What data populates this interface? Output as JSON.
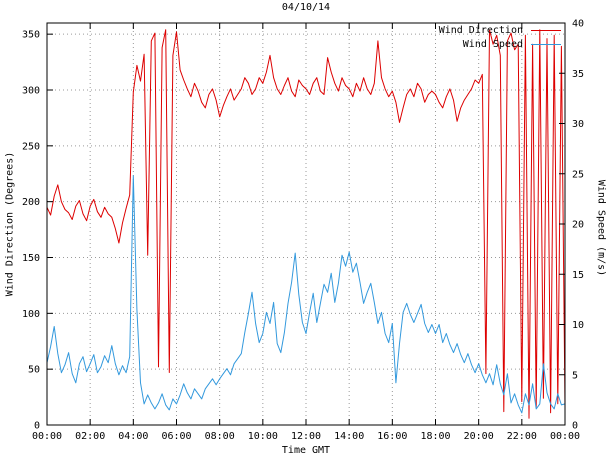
{
  "legend": [
    {
      "label": "Wind Direction",
      "color": "#dd0000"
    },
    {
      "label": "Wind Speed",
      "color": "#3399dd"
    }
  ],
  "chart_data": {
    "type": "line",
    "title": "04/10/14",
    "xlabel": "Time GMT",
    "ylabel_left": "Wind Direction (Degrees)",
    "ylabel_right": "Wind Speed (m/s)",
    "grid": true,
    "legend_position": "top-right-inside",
    "xlim": [
      0,
      24
    ],
    "ylim_left": [
      0,
      360
    ],
    "ylim_right": [
      0,
      40
    ],
    "x_tick_labels": [
      "00:00",
      "02:00",
      "04:00",
      "06:00",
      "08:00",
      "10:00",
      "12:00",
      "14:00",
      "16:00",
      "18:00",
      "20:00",
      "22:00",
      "00:00"
    ],
    "x_tick_hours": [
      0,
      2,
      4,
      6,
      8,
      10,
      12,
      14,
      16,
      18,
      20,
      22,
      24
    ],
    "y_ticks_left": [
      0,
      50,
      100,
      150,
      200,
      250,
      300,
      350
    ],
    "y_ticks_right": [
      0,
      5,
      10,
      15,
      20,
      25,
      30,
      35,
      40
    ],
    "x_time_start": "00:00",
    "x_time_step_minutes": 10,
    "series": [
      {
        "name": "Wind Direction",
        "axis": "left",
        "unit": "degrees",
        "color": "#dd0000",
        "values": [
          195,
          188,
          205,
          215,
          200,
          193,
          190,
          184,
          196,
          201,
          189,
          183,
          196,
          202,
          191,
          186,
          195,
          189,
          186,
          176,
          163,
          181,
          194,
          206,
          298,
          322,
          308,
          332,
          152,
          344,
          351,
          52,
          338,
          354,
          47,
          331,
          352,
          318,
          309,
          301,
          294,
          306,
          299,
          289,
          284,
          296,
          301,
          291,
          276,
          286,
          294,
          301,
          291,
          296,
          301,
          311,
          306,
          296,
          301,
          311,
          306,
          316,
          331,
          311,
          301,
          296,
          304,
          311,
          299,
          294,
          309,
          304,
          301,
          296,
          306,
          311,
          299,
          296,
          329,
          316,
          306,
          299,
          311,
          304,
          301,
          294,
          306,
          299,
          311,
          301,
          296,
          306,
          344,
          311,
          301,
          294,
          299,
          289,
          271,
          284,
          296,
          301,
          294,
          306,
          301,
          289,
          296,
          299,
          296,
          289,
          284,
          294,
          301,
          291,
          272,
          284,
          291,
          296,
          301,
          309,
          306,
          314,
          46,
          354,
          341,
          349,
          331,
          12,
          344,
          351,
          336,
          341,
          21,
          349,
          6,
          341,
          16,
          354,
          24,
          346,
          11,
          349,
          19,
          339,
          16
        ]
      },
      {
        "name": "Wind Speed",
        "axis": "right",
        "unit": "m/s",
        "color": "#3399dd",
        "values": [
          6.2,
          7.8,
          9.8,
          7.1,
          5.2,
          6.0,
          7.2,
          5.1,
          4.2,
          6.1,
          6.8,
          5.3,
          6.1,
          7.0,
          5.2,
          5.8,
          6.9,
          6.2,
          7.9,
          6.1,
          5.0,
          5.9,
          5.2,
          6.8,
          24.8,
          11.5,
          4.2,
          2.1,
          3.0,
          2.2,
          1.6,
          2.2,
          3.1,
          2.0,
          1.5,
          2.6,
          2.1,
          3.0,
          4.1,
          3.2,
          2.6,
          3.6,
          3.1,
          2.6,
          3.6,
          4.1,
          4.6,
          4.0,
          4.6,
          5.1,
          5.6,
          5.0,
          6.1,
          6.6,
          7.1,
          9.2,
          11.1,
          13.2,
          10.1,
          8.2,
          9.1,
          11.2,
          10.1,
          12.2,
          8.1,
          7.2,
          9.2,
          12.1,
          14.2,
          17.1,
          13.0,
          10.2,
          9.1,
          11.2,
          13.1,
          10.2,
          12.1,
          14.0,
          13.2,
          15.1,
          12.2,
          14.1,
          16.9,
          15.8,
          17.2,
          15.2,
          16.1,
          14.2,
          12.1,
          13.2,
          14.1,
          12.2,
          10.1,
          11.2,
          9.1,
          8.2,
          10.1,
          4.2,
          8.1,
          11.2,
          12.1,
          11.0,
          10.2,
          11.1,
          12.0,
          10.1,
          9.2,
          10.0,
          9.1,
          10.0,
          8.2,
          9.1,
          8.0,
          7.2,
          8.1,
          7.0,
          6.2,
          7.1,
          6.0,
          5.2,
          6.1,
          5.0,
          4.2,
          5.1,
          4.0,
          6.0,
          4.1,
          3.0,
          5.1,
          2.2,
          3.1,
          2.0,
          1.2,
          3.1,
          2.0,
          4.1,
          1.6,
          2.1,
          6.1,
          3.2,
          2.1,
          1.6,
          3.1,
          2.0,
          2.1
        ]
      }
    ]
  }
}
